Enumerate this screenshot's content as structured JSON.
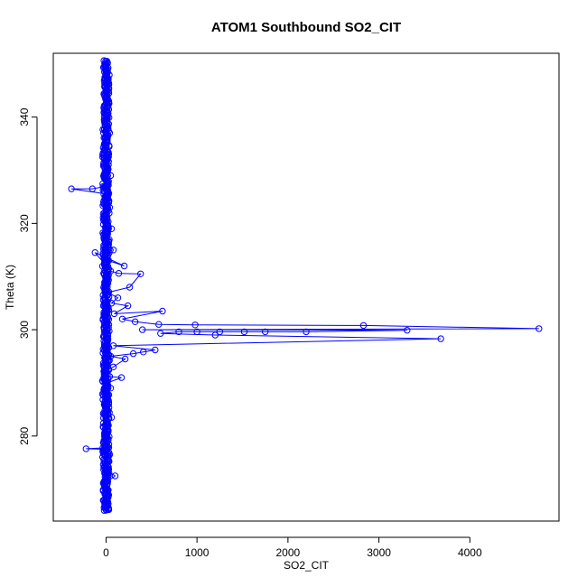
{
  "chart_data": {
    "type": "line",
    "title": "ATOM1 Southbound SO2_CIT",
    "xlabel": "SO2_CIT",
    "ylabel": "Theta (K)",
    "xlim": [
      -580,
      4980
    ],
    "ylim": [
      264,
      352
    ],
    "x_ticks": [
      0,
      1000,
      2000,
      3000,
      4000
    ],
    "y_ticks": [
      280,
      300,
      320,
      340
    ],
    "grid": false,
    "legend": "none",
    "series": [
      {
        "color": "#0000ff",
        "marker": "open-circle",
        "line": true,
        "points": [
          [
            -20,
            266.0
          ],
          [
            5,
            266.5
          ],
          [
            15,
            268.5
          ],
          [
            -5,
            270.0
          ],
          [
            20,
            271.5
          ],
          [
            100,
            272.5
          ],
          [
            10,
            273.5
          ],
          [
            -10,
            275.0
          ],
          [
            40,
            276.5
          ],
          [
            -20,
            277.5
          ],
          [
            -220,
            277.6
          ],
          [
            30,
            277.8
          ],
          [
            0,
            280.0
          ],
          [
            20,
            282.0
          ],
          [
            -10,
            284.0
          ],
          [
            60,
            283.5
          ],
          [
            30,
            286.0
          ],
          [
            0,
            288.0
          ],
          [
            50,
            289.0
          ],
          [
            15,
            290.0
          ],
          [
            170,
            291.0
          ],
          [
            40,
            291.2
          ],
          [
            -20,
            292.0
          ],
          [
            80,
            293.0
          ],
          [
            210,
            294.5
          ],
          [
            50,
            295.0
          ],
          [
            300,
            295.5
          ],
          [
            410,
            295.8
          ],
          [
            540,
            296.2
          ],
          [
            80,
            297.0
          ],
          [
            3680,
            298.3
          ],
          [
            1200,
            299.0
          ],
          [
            600,
            299.3
          ],
          [
            800,
            299.6
          ],
          [
            1000,
            299.6
          ],
          [
            1250,
            299.6
          ],
          [
            1520,
            299.6
          ],
          [
            1750,
            299.6
          ],
          [
            2200,
            299.6
          ],
          [
            3310,
            299.9
          ],
          [
            400,
            300.0
          ],
          [
            4760,
            300.2
          ],
          [
            2830,
            300.8
          ],
          [
            980,
            300.9
          ],
          [
            580,
            301.0
          ],
          [
            320,
            301.5
          ],
          [
            180,
            302.0
          ],
          [
            620,
            303.5
          ],
          [
            90,
            303.0
          ],
          [
            240,
            304.5
          ],
          [
            60,
            305.0
          ],
          [
            130,
            306.0
          ],
          [
            20,
            307.0
          ],
          [
            260,
            308.0
          ],
          [
            380,
            310.5
          ],
          [
            140,
            310.6
          ],
          [
            50,
            311.0
          ],
          [
            -120,
            314.5
          ],
          [
            200,
            312.0
          ],
          [
            30,
            313.0
          ],
          [
            80,
            315.0
          ],
          [
            10,
            317.0
          ],
          [
            60,
            319.0
          ],
          [
            -10,
            321.0
          ],
          [
            40,
            323.0
          ],
          [
            20,
            325.5
          ],
          [
            -380,
            326.5
          ],
          [
            -150,
            326.5
          ],
          [
            10,
            327.0
          ],
          [
            50,
            329.0
          ],
          [
            0,
            331.0
          ],
          [
            30,
            333.0
          ],
          [
            -10,
            335.0
          ],
          [
            40,
            337.0
          ],
          [
            10,
            339.0
          ],
          [
            -20,
            341.0
          ],
          [
            30,
            343.0
          ],
          [
            0,
            345.0
          ],
          [
            20,
            347.0
          ],
          [
            -5,
            349.0
          ],
          [
            10,
            350.5
          ],
          [
            -15,
            350.0
          ]
        ],
        "core_band": {
          "center_x": 0,
          "jitter_x": 25,
          "theta_range": [
            266,
            350.5
          ],
          "count": 900
        }
      }
    ]
  }
}
